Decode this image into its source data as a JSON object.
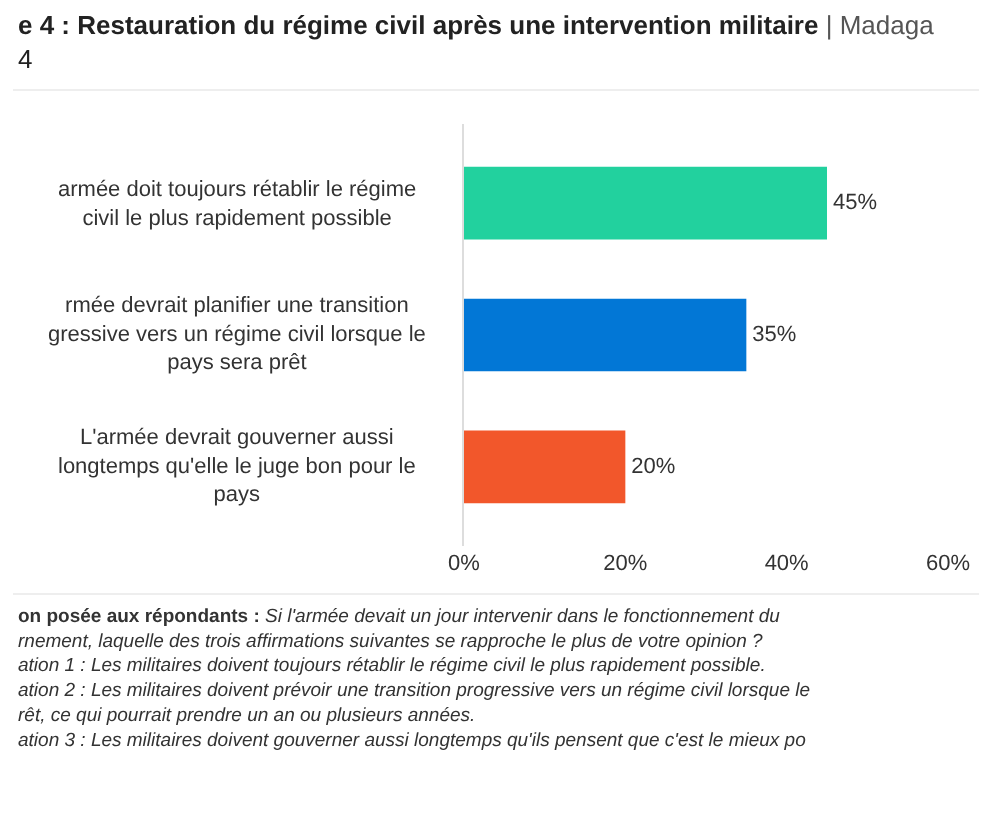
{
  "chart_data": {
    "type": "bar",
    "orientation": "horizontal",
    "title": "e 4 : Restauration du régime civil après une intervention militaire | Madaga\n4",
    "categories": [
      "armée doit toujours rétablir le régime\ncivil le plus rapidement possible",
      "rmée devrait planifier une transition\ngressive vers un régime civil lorsque le\npays sera prêt",
      "L'armée devrait gouverner aussi\nlongtemps qu'elle le juge bon pour le\npays"
    ],
    "values": [
      45,
      35,
      20
    ],
    "colors": [
      "#22d19e",
      "#0277d6",
      "#f2572b"
    ],
    "xlim": [
      0,
      60
    ],
    "xticks": [
      {
        "value": 0,
        "label": "0%"
      },
      {
        "value": 20,
        "label": "20%"
      },
      {
        "value": 40,
        "label": "40%"
      },
      {
        "value": 60,
        "label": "60%"
      }
    ],
    "value_labels": [
      "45%",
      "35%",
      "20%"
    ],
    "legend": false,
    "annotations": [
      "on posée aux répondants : Si l'armée devait un jour intervenir dans le fonctionnement du",
      "rnement, laquelle des trois affirmations suivantes se rapproche le plus de votre opinion ?",
      "ation 1 : Les militaires doivent toujours rétablir le régime civil le plus rapidement possible.",
      "ation 2 : Les militaires doivent prévoir une transition progressive vers un régime civil lorsque le",
      "rêt, ce qui pourrait prendre un an ou plusieurs années.",
      "ation 3 : Les militaires doivent gouverner aussi longtemps qu'ils pensent que c'est le mieux po"
    ]
  }
}
